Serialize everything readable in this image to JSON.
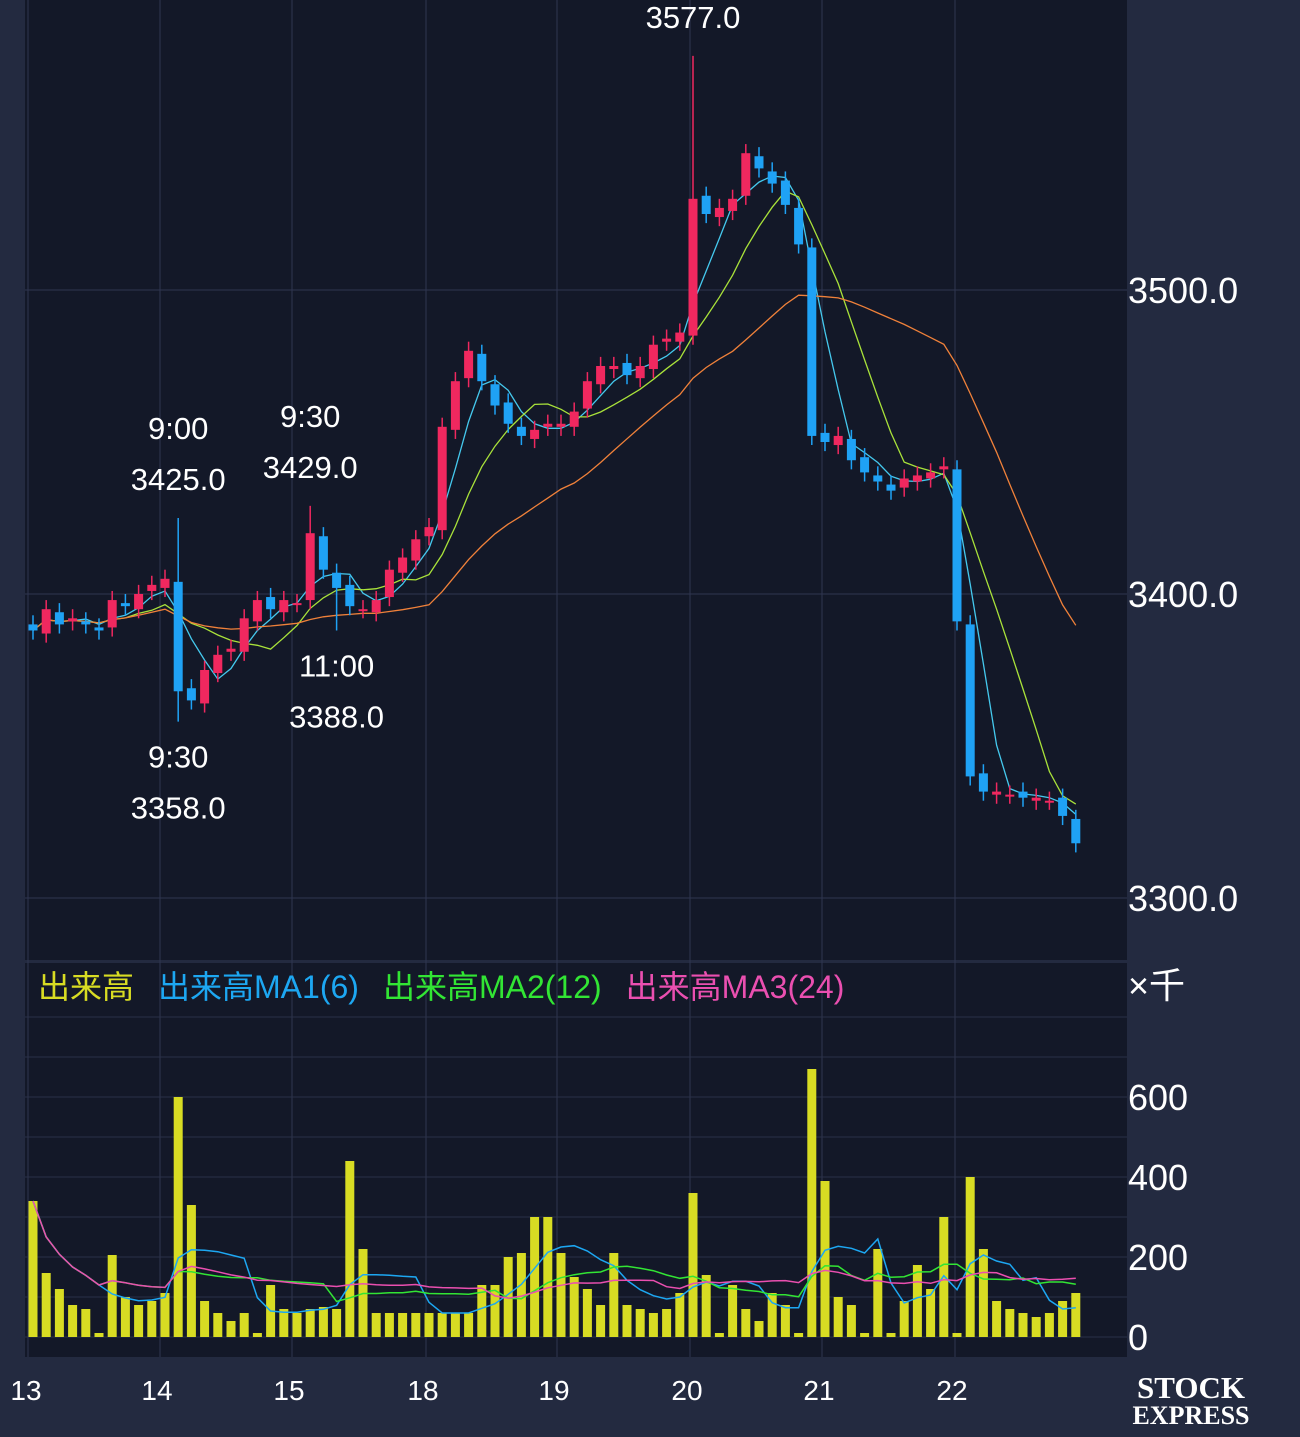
{
  "chart_data": {
    "type": "candlestick",
    "price_axis": {
      "ticks": [
        "3500.0",
        "3400.0",
        "3300.0"
      ],
      "tick_values": [
        3500,
        3400,
        3300
      ],
      "range": [
        3300,
        3590
      ]
    },
    "volume_axis": {
      "unit": "×千",
      "ticks": [
        "600",
        "400",
        "200",
        "0"
      ],
      "tick_values": [
        600,
        400,
        200,
        0
      ],
      "range": [
        0,
        860
      ]
    },
    "x_ticks": [
      "13",
      "14",
      "15",
      "18",
      "19",
      "20",
      "21",
      "22"
    ],
    "annotations": [
      {
        "time": "9:00",
        "price": "3425.0",
        "bar": 11,
        "value": 3425,
        "type": "high"
      },
      {
        "time": "9:30",
        "price": "3358.0",
        "bar": 11,
        "value": 3358,
        "type": "low"
      },
      {
        "time": "9:30",
        "price": "3429.0",
        "bar": 21,
        "value": 3429,
        "type": "high"
      },
      {
        "time": "11:00",
        "price": "3388.0",
        "bar": 23,
        "value": 3388,
        "type": "low"
      },
      {
        "time": "",
        "price": "3577.0",
        "bar": 50,
        "value": 3577,
        "type": "high"
      }
    ],
    "volume_legend": [
      {
        "label": "出来高",
        "color": "#d8dc23"
      },
      {
        "label": "出来高MA1(6)",
        "color": "#1da7f2"
      },
      {
        "label": "出来高MA2(12)",
        "color": "#32e534"
      },
      {
        "label": "出来高MA3(24)",
        "color": "#ea4fb0"
      }
    ],
    "colors": {
      "up": "#f0285f",
      "down": "#1fa2f5",
      "volume": "#d8dc23",
      "ma_short": "#45c9ee",
      "ma_mid": "#a9e23a",
      "ma_long": "#f0813a",
      "background": "#131828"
    },
    "closes": [
      3388,
      3395,
      3390,
      3392,
      3390,
      3388,
      3398,
      3396,
      3400,
      3403,
      3405,
      3368,
      3365,
      3375,
      3380,
      3382,
      3392,
      3398,
      3395,
      3398,
      3397,
      3420,
      3408,
      3402,
      3396,
      3395,
      3398,
      3408,
      3412,
      3418,
      3422,
      3455,
      3470,
      3480,
      3470,
      3462,
      3456,
      3452,
      3454,
      3456,
      3456,
      3460,
      3470,
      3475,
      3475,
      3472,
      3475,
      3482,
      3484,
      3486,
      3530,
      3525,
      3527,
      3530,
      3545,
      3540,
      3535,
      3528,
      3515,
      3452,
      3450,
      3452,
      3444,
      3440,
      3437,
      3434,
      3438,
      3439,
      3440,
      3442,
      3391,
      3340,
      3335,
      3335,
      3334,
      3333,
      3333,
      3332,
      3327,
      3318
    ],
    "volumes": [
      340,
      160,
      120,
      80,
      70,
      10,
      205,
      100,
      80,
      90,
      110,
      600,
      330,
      90,
      60,
      40,
      60,
      10,
      130,
      70,
      60,
      70,
      75,
      70,
      440,
      220,
      60,
      60,
      60,
      60,
      60,
      60,
      60,
      60,
      130,
      130,
      200,
      210,
      300,
      300,
      210,
      150,
      120,
      80,
      210,
      80,
      70,
      60,
      70,
      110,
      360,
      155,
      10,
      130,
      70,
      40,
      110,
      80,
      10,
      670,
      390,
      100,
      80,
      10,
      220,
      10,
      90,
      180,
      120,
      300,
      10,
      400,
      220,
      90,
      70,
      60,
      50,
      60,
      90,
      110
    ]
  }
}
